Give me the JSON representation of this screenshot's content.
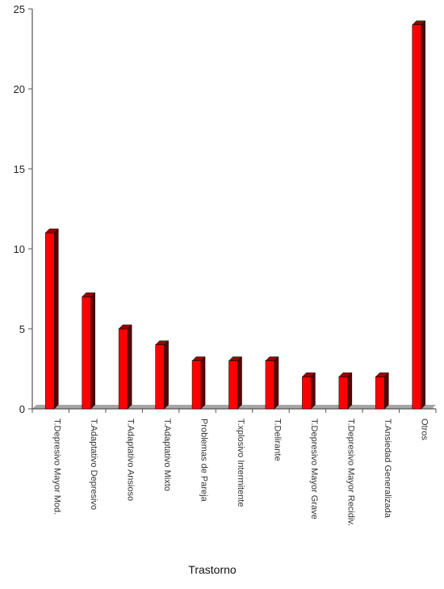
{
  "chart_data": {
    "type": "bar",
    "xlabel": "Trastorno",
    "ylabel": "",
    "ylim": [
      0,
      25
    ],
    "yticks": [
      0,
      5,
      10,
      15,
      20,
      25
    ],
    "grid": false,
    "categories": [
      "T.Depresivo Mayor Mod.",
      "T.Adaptativo Depresivo",
      "T.Adaptativo Ansioso",
      "T.Adaptativo Mixto",
      "Problemas de Pareja",
      "T.xplosivo Intermitente",
      "T.Delirante",
      "T.Depresivo Mayor Grave",
      "T.Depresivo Mayor Recidiv.",
      "T.Ansiedad Generalizada",
      "Otros"
    ],
    "values": [
      11,
      7,
      5,
      4,
      3,
      3,
      3,
      2,
      2,
      2,
      24
    ],
    "colors": {
      "bar_front": "#ff0000",
      "bar_side": "#5a0000",
      "bar_top": "#9a0000",
      "floor": "#a6a6a6",
      "axis": "#555555"
    }
  }
}
